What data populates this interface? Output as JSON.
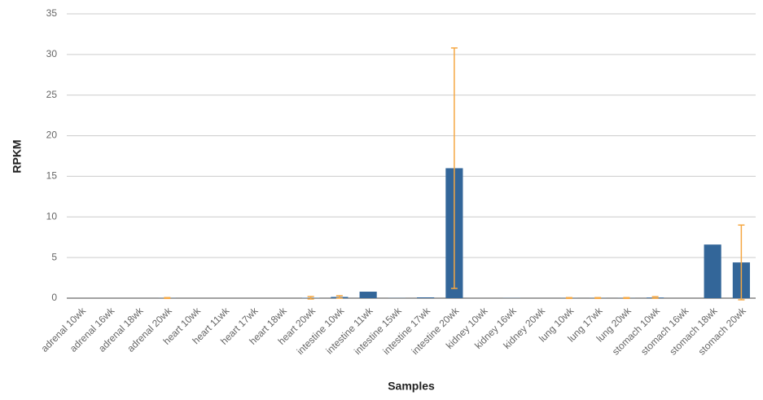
{
  "chart_data": {
    "type": "bar",
    "x_label": "Samples",
    "y_label": "RPKM",
    "categories": [
      "adrenal 10wk",
      "adrenal 16wk",
      "adrenal 18wk",
      "adrenal 20wk",
      "heart 10wk",
      "heart 11wk",
      "heart 17wk",
      "heart 18wk",
      "heart 20wk",
      "intestine 10wk",
      "intestine 11wk",
      "intestine 15wk",
      "intestine 17wk",
      "intestine 20wk",
      "kidney 10wk",
      "kidney 16wk",
      "kidney 20wk",
      "lung 10wk",
      "lung 17wk",
      "lung 20wk",
      "stomach 10wk",
      "stomach 16wk",
      "stomach 18wk",
      "stomach 20wk"
    ],
    "values": [
      0,
      0,
      0,
      0.02,
      0,
      0,
      0,
      0,
      0.05,
      0.15,
      0.8,
      0.02,
      0.1,
      16,
      0,
      0.02,
      0,
      0.02,
      0.02,
      0.02,
      0.08,
      0,
      6.6,
      4.4
    ],
    "errors": [
      null,
      null,
      null,
      0.05,
      null,
      null,
      null,
      null,
      0.15,
      0.15,
      null,
      null,
      null,
      14.8,
      null,
      null,
      null,
      0.05,
      0.05,
      0.05,
      0.1,
      null,
      null,
      4.6
    ],
    "color": "#336699",
    "error_color": "#f5a742",
    "ylim": [
      0,
      35
    ],
    "yticks": [
      0,
      5,
      10,
      15,
      20,
      25,
      30,
      35
    ],
    "grid": true
  }
}
